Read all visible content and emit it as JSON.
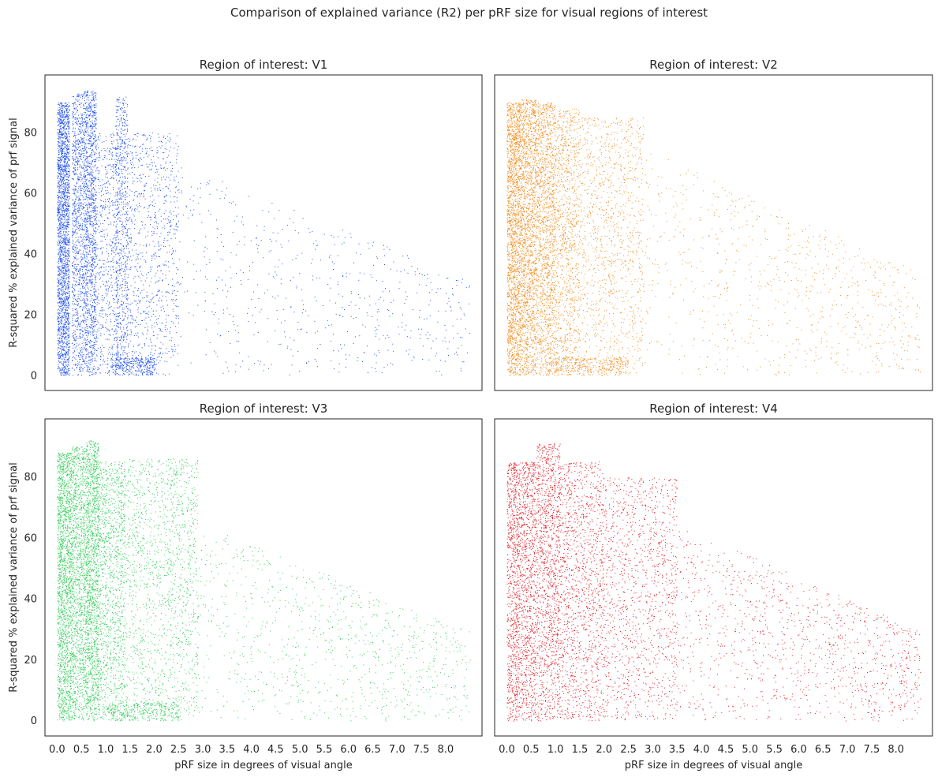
{
  "figure_title": "Comparison of explained variance (R2) per pRF size for visual regions of interest",
  "chart_data": [
    {
      "type": "scatter",
      "title": "Region of interest: V1",
      "xlabel": "",
      "ylabel": "R-squared % explained variance of prf signal",
      "color": "#1f4ff0",
      "xlim": [
        -0.25,
        8.75
      ],
      "ylim": [
        -5,
        99
      ],
      "x_ticks": [
        "0.0",
        "0.5",
        "1.0",
        "1.5",
        "2.0",
        "2.5",
        "3.0",
        "3.5",
        "4.0",
        "4.5",
        "5.0",
        "5.5",
        "6.0",
        "6.5",
        "7.0",
        "7.5",
        "8.0"
      ],
      "y_ticks": [
        "0",
        "20",
        "40",
        "60",
        "80"
      ],
      "show_x_ticks": false,
      "show_y_ticks": true,
      "grid": false,
      "point_clusters": [
        {
          "x": [
            0.0,
            0.25
          ],
          "y": [
            0,
            90
          ],
          "n": 2200
        },
        {
          "x": [
            0.3,
            0.55
          ],
          "y": [
            0,
            93
          ],
          "n": 1000
        },
        {
          "x": [
            0.55,
            0.8
          ],
          "y": [
            0,
            94
          ],
          "n": 1300
        },
        {
          "x": [
            0.8,
            1.25
          ],
          "y": [
            0,
            80
          ],
          "n": 600
        },
        {
          "x": [
            1.2,
            1.45
          ],
          "y": [
            0,
            92
          ],
          "n": 700
        },
        {
          "x": [
            1.45,
            2.5
          ],
          "y": [
            0,
            80
          ],
          "n": 900
        },
        {
          "x": [
            1.1,
            2.0
          ],
          "y": [
            0,
            6
          ],
          "n": 300
        },
        {
          "x": [
            2.5,
            8.5
          ],
          "y": [
            0,
            70
          ],
          "n": 600,
          "taper": true
        }
      ]
    },
    {
      "type": "scatter",
      "title": "Region of interest: V2",
      "xlabel": "",
      "ylabel": "",
      "color": "#f28c1c",
      "xlim": [
        -0.25,
        8.75
      ],
      "ylim": [
        -5,
        99
      ],
      "x_ticks": [
        "0.0",
        "0.5",
        "1.0",
        "1.5",
        "2.0",
        "2.5",
        "3.0",
        "3.5",
        "4.0",
        "4.5",
        "5.0",
        "5.5",
        "6.0",
        "6.5",
        "7.0",
        "7.5",
        "8.0"
      ],
      "y_ticks": [
        "0",
        "20",
        "40",
        "60",
        "80"
      ],
      "show_x_ticks": false,
      "show_y_ticks": false,
      "grid": false,
      "point_clusters": [
        {
          "x": [
            0.0,
            0.3
          ],
          "y": [
            0,
            90
          ],
          "n": 2000
        },
        {
          "x": [
            0.3,
            0.6
          ],
          "y": [
            0,
            91
          ],
          "n": 1500
        },
        {
          "x": [
            0.6,
            1.0
          ],
          "y": [
            0,
            90
          ],
          "n": 1500
        },
        {
          "x": [
            1.0,
            1.5
          ],
          "y": [
            0,
            88
          ],
          "n": 1000
        },
        {
          "x": [
            1.5,
            2.8
          ],
          "y": [
            0,
            85
          ],
          "n": 1100
        },
        {
          "x": [
            1.0,
            2.5
          ],
          "y": [
            0,
            6
          ],
          "n": 300
        },
        {
          "x": [
            2.8,
            8.5
          ],
          "y": [
            0,
            75
          ],
          "n": 800,
          "taper": true
        }
      ]
    },
    {
      "type": "scatter",
      "title": "Region of interest: V3",
      "xlabel": "pRF size in degrees of visual angle",
      "ylabel": "R-squared % explained variance of prf signal",
      "color": "#2ecc55",
      "xlim": [
        -0.25,
        8.75
      ],
      "ylim": [
        -5,
        99
      ],
      "x_ticks": [
        "0.0",
        "0.5",
        "1.0",
        "1.5",
        "2.0",
        "2.5",
        "3.0",
        "3.5",
        "4.0",
        "4.5",
        "5.0",
        "5.5",
        "6.0",
        "6.5",
        "7.0",
        "7.5",
        "8.0"
      ],
      "y_ticks": [
        "0",
        "20",
        "40",
        "60",
        "80"
      ],
      "show_x_ticks": true,
      "show_y_ticks": true,
      "grid": false,
      "point_clusters": [
        {
          "x": [
            0.0,
            0.3
          ],
          "y": [
            0,
            88
          ],
          "n": 1800
        },
        {
          "x": [
            0.3,
            0.6
          ],
          "y": [
            0,
            90
          ],
          "n": 1300
        },
        {
          "x": [
            0.6,
            0.85
          ],
          "y": [
            0,
            92
          ],
          "n": 1400
        },
        {
          "x": [
            0.85,
            1.4
          ],
          "y": [
            0,
            85
          ],
          "n": 1200
        },
        {
          "x": [
            1.4,
            2.9
          ],
          "y": [
            0,
            86
          ],
          "n": 1500
        },
        {
          "x": [
            1.0,
            2.5
          ],
          "y": [
            0,
            6
          ],
          "n": 300
        },
        {
          "x": [
            2.9,
            8.5
          ],
          "y": [
            0,
            65
          ],
          "n": 900,
          "taper": true
        }
      ]
    },
    {
      "type": "scatter",
      "title": "Region of interest: V4",
      "xlabel": "pRF size in degrees of visual angle",
      "ylabel": "",
      "color": "#e01c25",
      "xlim": [
        -0.25,
        8.75
      ],
      "ylim": [
        -5,
        99
      ],
      "x_ticks": [
        "0.0",
        "0.5",
        "1.0",
        "1.5",
        "2.0",
        "2.5",
        "3.0",
        "3.5",
        "4.0",
        "4.5",
        "5.0",
        "5.5",
        "6.0",
        "6.5",
        "7.0",
        "7.5",
        "8.0"
      ],
      "y_ticks": [
        "0",
        "20",
        "40",
        "60",
        "80"
      ],
      "show_x_ticks": true,
      "show_y_ticks": false,
      "grid": false,
      "point_clusters": [
        {
          "x": [
            0.0,
            0.25
          ],
          "y": [
            0,
            85
          ],
          "n": 900
        },
        {
          "x": [
            0.25,
            0.6
          ],
          "y": [
            0,
            85
          ],
          "n": 1000
        },
        {
          "x": [
            0.6,
            1.1
          ],
          "y": [
            0,
            91
          ],
          "n": 1300
        },
        {
          "x": [
            1.1,
            2.0
          ],
          "y": [
            0,
            85
          ],
          "n": 1300
        },
        {
          "x": [
            2.0,
            3.5
          ],
          "y": [
            0,
            80
          ],
          "n": 1200
        },
        {
          "x": [
            3.5,
            8.5
          ],
          "y": [
            0,
            65
          ],
          "n": 1100,
          "taper": true
        }
      ]
    }
  ]
}
